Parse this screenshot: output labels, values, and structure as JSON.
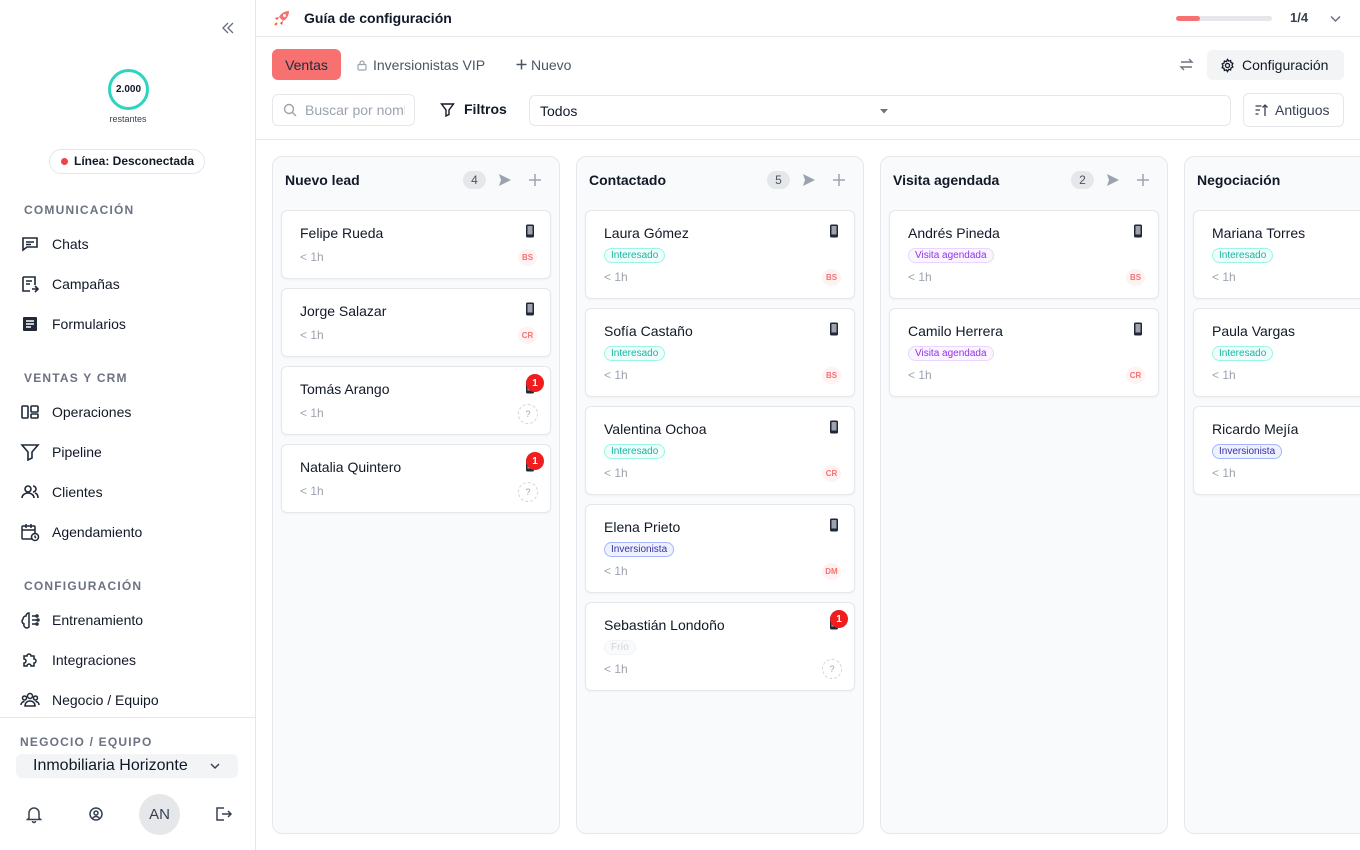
{
  "sidebar": {
    "credits": {
      "value": "2.000",
      "label": "restantes"
    },
    "line_status": "Línea: Desconectada",
    "sections": {
      "comunicacion": "COMUNICACIÓN",
      "ventas": "VENTAS Y CRM",
      "configuracion": "CONFIGURACIÓN"
    },
    "items": {
      "chats": "Chats",
      "campanas": "Campañas",
      "formularios": "Formularios",
      "operaciones": "Operaciones",
      "pipeline": "Pipeline",
      "clientes": "Clientes",
      "agendamiento": "Agendamiento",
      "entrenamiento": "Entrenamiento",
      "integraciones": "Integraciones",
      "negocio": "Negocio / Equipo"
    },
    "business_label": "NEGOCIO / EQUIPO",
    "business_name": "Inmobiliaria Horizonte",
    "avatar_initials": "AN"
  },
  "guide": {
    "title": "Guía de configuración",
    "progress_label": "1/4",
    "progress_fraction": 0.25
  },
  "toolbar": {
    "tab_active": "Ventas",
    "tab_locked": "Inversionistas VIP",
    "tab_new": "Nuevo",
    "config_label": "Configuración",
    "search_placeholder": "Buscar por nombre",
    "filters_label": "Filtros",
    "select_value": "Todos",
    "sort_label": "Antiguos"
  },
  "colors": {
    "accent": "#f87171",
    "credits_ring": "#2dd4bf",
    "status_offline": "#ef4444",
    "badge": "#ef1d1d"
  },
  "columns": [
    {
      "title": "Nuevo lead",
      "count": "4",
      "cards": [
        {
          "name": "Felipe Rueda",
          "time": "< 1h",
          "agent": "BS"
        },
        {
          "name": "Jorge Salazar",
          "time": "< 1h",
          "agent": "CR"
        },
        {
          "name": "Tomás Arango",
          "time": "< 1h",
          "badge": "1",
          "unknown": "?"
        },
        {
          "name": "Natalia Quintero",
          "time": "< 1h",
          "badge": "1",
          "unknown": "?"
        }
      ]
    },
    {
      "title": "Contactado",
      "count": "5",
      "cards": [
        {
          "name": "Laura Gómez",
          "tag": "Interesado",
          "time": "< 1h",
          "agent": "BS"
        },
        {
          "name": "Sofía Castaño",
          "tag": "Interesado",
          "time": "< 1h",
          "agent": "BS"
        },
        {
          "name": "Valentina Ochoa",
          "tag": "Interesado",
          "time": "< 1h",
          "agent": "CR"
        },
        {
          "name": "Elena Prieto",
          "tag": "Inversionista",
          "time": "< 1h",
          "agent": "DM"
        },
        {
          "name": "Sebastián Londoño",
          "tag": "Frío",
          "time": "< 1h",
          "badge": "1",
          "unknown": "?"
        }
      ]
    },
    {
      "title": "Visita agendada",
      "count": "2",
      "cards": [
        {
          "name": "Andrés Pineda",
          "tag": "Visita agendada",
          "time": "< 1h",
          "agent": "BS"
        },
        {
          "name": "Camilo Herrera",
          "tag": "Visita agendada",
          "time": "< 1h",
          "agent": "CR"
        }
      ]
    },
    {
      "title": "Negociación",
      "cards": [
        {
          "name": "Mariana Torres",
          "tag": "Interesado",
          "time": "< 1h"
        },
        {
          "name": "Paula Vargas",
          "tag": "Interesado",
          "time": "< 1h"
        },
        {
          "name": "Ricardo Mejía",
          "tag": "Inversionista",
          "time": "< 1h"
        }
      ]
    }
  ]
}
